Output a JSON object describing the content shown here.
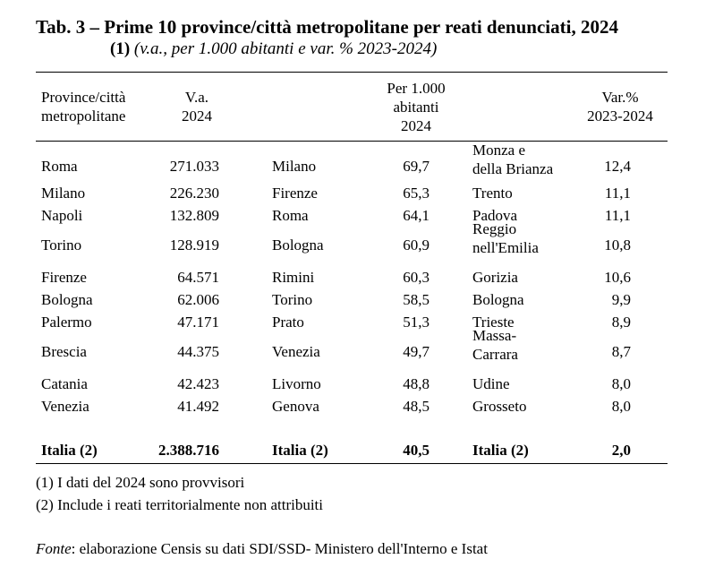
{
  "title": "Tab. 3 – Prime 10 province/città metropolitane per reati denunciati, 2024",
  "subtitle_num": "(1)",
  "subtitle_text": "(v.a., per 1.000 abitanti e var. % 2023-2024)",
  "headers": {
    "col1": [
      "Province/città",
      "metropolitane"
    ],
    "col2": [
      "V.a.",
      "2024"
    ],
    "col4": [
      "Per 1.000",
      "abitanti",
      "2024"
    ],
    "col6": [
      "Var.%",
      "2023-2024"
    ]
  },
  "rows": [
    {
      "p1": "Roma",
      "va": "271.033",
      "p2": "Milano",
      "per1000": "69,7",
      "p3": [
        "Monza e",
        "della Brianza"
      ],
      "var": "12,4"
    },
    {
      "p1": "Milano",
      "va": "226.230",
      "p2": "Firenze",
      "per1000": "65,3",
      "p3": [
        "Trento"
      ],
      "var": "11,1"
    },
    {
      "p1": "Napoli",
      "va": "132.809",
      "p2": "Roma",
      "per1000": "64,1",
      "p3": [
        "Padova"
      ],
      "var": "11,1"
    },
    {
      "p1": "Torino",
      "va": "128.919",
      "p2": "Bologna",
      "per1000": "60,9",
      "p3": [
        "Reggio",
        "nell'Emilia"
      ],
      "var": "10,8"
    },
    {
      "p1": "Firenze",
      "va": "64.571",
      "p2": "Rimini",
      "per1000": "60,3",
      "p3": [
        "Gorizia"
      ],
      "var": "10,6"
    },
    {
      "p1": "Bologna",
      "va": "62.006",
      "p2": "Torino",
      "per1000": "58,5",
      "p3": [
        "Bologna"
      ],
      "var": "9,9"
    },
    {
      "p1": "Palermo",
      "va": "47.171",
      "p2": "Prato",
      "per1000": "51,3",
      "p3": [
        "Trieste"
      ],
      "var": "8,9"
    },
    {
      "p1": "Brescia",
      "va": "44.375",
      "p2": "Venezia",
      "per1000": "49,7",
      "p3": [
        "Massa-",
        "Carrara"
      ],
      "var": "8,7"
    },
    {
      "p1": "Catania",
      "va": "42.423",
      "p2": "Livorno",
      "per1000": "48,8",
      "p3": [
        "Udine"
      ],
      "var": "8,0"
    },
    {
      "p1": "Venezia",
      "va": "41.492",
      "p2": "Genova",
      "per1000": "48,5",
      "p3": [
        "Grosseto"
      ],
      "var": "8,0"
    }
  ],
  "total": {
    "p1": "Italia (2)",
    "va": "2.388.716",
    "p2": "Italia (2)",
    "per1000": "40,5",
    "p3": "Italia (2)",
    "var": "2,0"
  },
  "notes": [
    "(1) I dati del 2024 sono provvisori",
    "(2)  Include i reati territorialmente non attribuiti"
  ],
  "fonte_label": "Fonte",
  "fonte_text": ": elaborazione Censis su dati SDI/SSD- Ministero dell'Interno e Istat"
}
